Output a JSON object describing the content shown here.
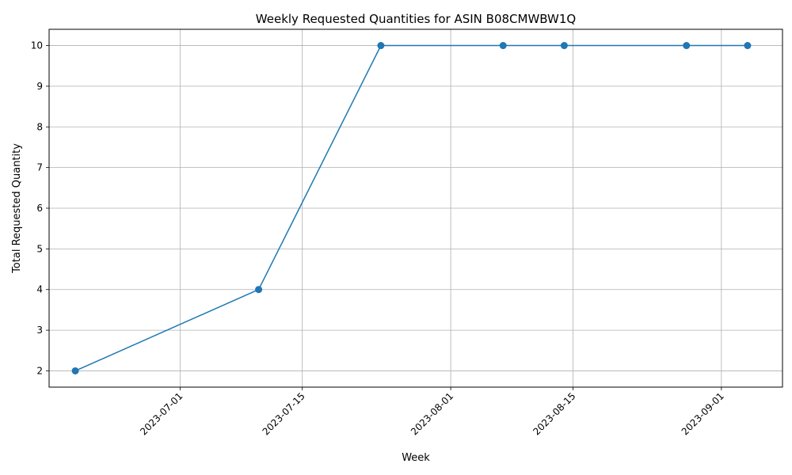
{
  "chart_data": {
    "type": "line",
    "title": "Weekly Requested Quantities for ASIN B08CMWBW1Q",
    "xlabel": "Week",
    "ylabel": "Total Requested Quantity",
    "x_is_date": true,
    "xlim": [
      "2023-06-16",
      "2023-09-08"
    ],
    "ylim": [
      1.6,
      10.4
    ],
    "x_ticks": [
      "2023-07-01",
      "2023-07-15",
      "2023-08-01",
      "2023-08-15",
      "2023-09-01"
    ],
    "y_ticks": [
      2,
      3,
      4,
      5,
      6,
      7,
      8,
      9,
      10
    ],
    "grid": true,
    "series": [
      {
        "color": "#1f77b4",
        "marker": "circle",
        "points": [
          {
            "x": "2023-06-19",
            "y": 2
          },
          {
            "x": "2023-07-10",
            "y": 4
          },
          {
            "x": "2023-07-24",
            "y": 10
          },
          {
            "x": "2023-08-07",
            "y": 10
          },
          {
            "x": "2023-08-14",
            "y": 10
          },
          {
            "x": "2023-08-28",
            "y": 10
          },
          {
            "x": "2023-09-04",
            "y": 10
          }
        ]
      }
    ]
  }
}
